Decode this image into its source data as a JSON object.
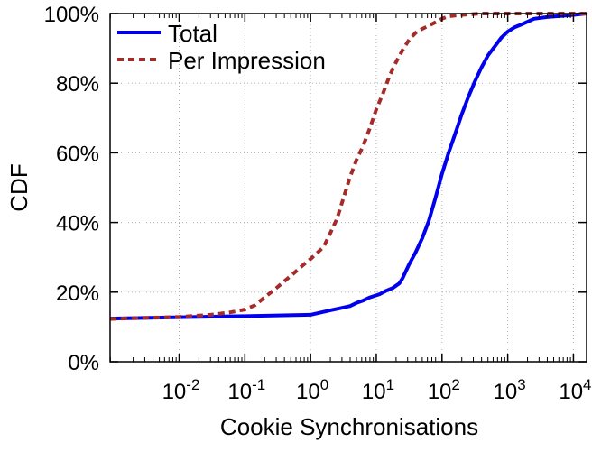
{
  "chart_data": {
    "type": "line",
    "title": "",
    "xlabel": "Cookie Synchronisations",
    "ylabel": "CDF",
    "x_scale": "log",
    "x_exponent_range": [
      -3.05,
      4.2
    ],
    "xlim": [
      0.00089,
      15849
    ],
    "ylim": [
      0,
      100
    ],
    "x_ticks": [
      {
        "base": "10",
        "exp": "-2",
        "value": 0.01
      },
      {
        "base": "10",
        "exp": "-1",
        "value": 0.1
      },
      {
        "base": "10",
        "exp": "0",
        "value": 1
      },
      {
        "base": "10",
        "exp": "1",
        "value": 10
      },
      {
        "base": "10",
        "exp": "2",
        "value": 100
      },
      {
        "base": "10",
        "exp": "3",
        "value": 1000
      },
      {
        "base": "10",
        "exp": "4",
        "value": 10000
      }
    ],
    "y_ticks": [
      {
        "label": "0%",
        "value": 0
      },
      {
        "label": "20%",
        "value": 20
      },
      {
        "label": "40%",
        "value": 40
      },
      {
        "label": "60%",
        "value": 60
      },
      {
        "label": "80%",
        "value": 80
      },
      {
        "label": "100%",
        "value": 100
      }
    ],
    "grid": true,
    "legend_position": "top-left",
    "series": [
      {
        "name": "Total",
        "color": "#0000ee",
        "dash": "solid",
        "points": [
          [
            0.00089,
            12.4
          ],
          [
            0.01,
            12.8
          ],
          [
            0.1,
            13.1
          ],
          [
            1.0,
            13.5
          ],
          [
            2.0,
            14.8
          ],
          [
            3.2,
            15.6
          ],
          [
            4.0,
            16.0
          ],
          [
            5.0,
            16.9
          ],
          [
            6.3,
            17.6
          ],
          [
            8.0,
            18.5
          ],
          [
            11.2,
            19.4
          ],
          [
            14.1,
            20.4
          ],
          [
            17.8,
            21.2
          ],
          [
            22.4,
            22.5
          ],
          [
            25.1,
            24.0
          ],
          [
            31.6,
            28.0
          ],
          [
            39.8,
            31.5
          ],
          [
            50.1,
            35.5
          ],
          [
            63.1,
            40.5
          ],
          [
            79.4,
            47.0
          ],
          [
            100,
            54.0
          ],
          [
            125.9,
            60.0
          ],
          [
            158.5,
            65.5
          ],
          [
            199.5,
            71.0
          ],
          [
            251.2,
            76.0
          ],
          [
            316.2,
            80.5
          ],
          [
            398.1,
            84.5
          ],
          [
            501.2,
            88.0
          ],
          [
            631.0,
            90.5
          ],
          [
            794.3,
            93.0
          ],
          [
            1000,
            94.8
          ],
          [
            1258.9,
            96.0
          ],
          [
            1584.9,
            96.8
          ],
          [
            2511.9,
            98.5
          ],
          [
            3981.1,
            99.0
          ],
          [
            6309.6,
            99.3
          ],
          [
            10000,
            99.6
          ],
          [
            15849,
            100
          ]
        ]
      },
      {
        "name": "Per Impression",
        "color": "#a52a2a",
        "dash": "dotted",
        "points": [
          [
            0.00089,
            12.3
          ],
          [
            0.01,
            12.9
          ],
          [
            0.03,
            13.5
          ],
          [
            0.06,
            14.2
          ],
          [
            0.1,
            15.0
          ],
          [
            0.141,
            16.2
          ],
          [
            0.2,
            18.5
          ],
          [
            0.316,
            21.5
          ],
          [
            0.501,
            24.7
          ],
          [
            0.794,
            28.0
          ],
          [
            1.0,
            29.5
          ],
          [
            1.585,
            33.0
          ],
          [
            2.0,
            37.0
          ],
          [
            2.512,
            41.0
          ],
          [
            3.162,
            47.0
          ],
          [
            3.981,
            53.0
          ],
          [
            5.012,
            58.0
          ],
          [
            6.31,
            62.0
          ],
          [
            7.943,
            67.0
          ],
          [
            10.0,
            72.5
          ],
          [
            12.59,
            77.0
          ],
          [
            15.85,
            82.0
          ],
          [
            19.95,
            86.0
          ],
          [
            25.12,
            89.5
          ],
          [
            31.62,
            92.5
          ],
          [
            39.81,
            94.5
          ],
          [
            50.12,
            95.6
          ],
          [
            63.1,
            96.5
          ],
          [
            79.43,
            97.5
          ],
          [
            100,
            98.5
          ],
          [
            125.9,
            99.2
          ],
          [
            199.5,
            99.6
          ],
          [
            398.1,
            100
          ],
          [
            15849,
            100
          ]
        ]
      }
    ]
  }
}
